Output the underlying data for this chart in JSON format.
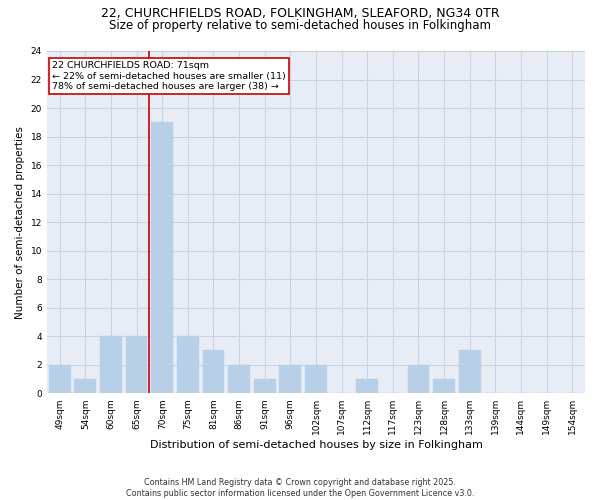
{
  "title1": "22, CHURCHFIELDS ROAD, FOLKINGHAM, SLEAFORD, NG34 0TR",
  "title2": "Size of property relative to semi-detached houses in Folkingham",
  "xlabel": "Distribution of semi-detached houses by size in Folkingham",
  "ylabel": "Number of semi-detached properties",
  "categories": [
    "49sqm",
    "54sqm",
    "60sqm",
    "65sqm",
    "70sqm",
    "75sqm",
    "81sqm",
    "86sqm",
    "91sqm",
    "96sqm",
    "102sqm",
    "107sqm",
    "112sqm",
    "117sqm",
    "123sqm",
    "128sqm",
    "133sqm",
    "139sqm",
    "144sqm",
    "149sqm",
    "154sqm"
  ],
  "values": [
    2,
    1,
    4,
    4,
    19,
    4,
    3,
    2,
    1,
    2,
    2,
    0,
    1,
    0,
    2,
    1,
    3,
    0,
    0,
    0,
    0
  ],
  "bar_color": "#b8cfe8",
  "bar_edge_color": "#b8cfe8",
  "grid_color": "#c8d4e4",
  "bg_color": "#e8edf5",
  "vline_color": "#cc0000",
  "annotation_title": "22 CHURCHFIELDS ROAD: 71sqm",
  "annotation_line1": "← 22% of semi-detached houses are smaller (11)",
  "annotation_line2": "78% of semi-detached houses are larger (38) →",
  "annotation_box_color": "#cc0000",
  "ylim": [
    0,
    24
  ],
  "yticks": [
    0,
    2,
    4,
    6,
    8,
    10,
    12,
    14,
    16,
    18,
    20,
    22,
    24
  ],
  "footer": "Contains HM Land Registry data © Crown copyright and database right 2025.\nContains public sector information licensed under the Open Government Licence v3.0.",
  "title_fontsize": 9,
  "subtitle_fontsize": 8.5,
  "tick_fontsize": 6.5,
  "ylabel_fontsize": 7.5,
  "xlabel_fontsize": 8,
  "annotation_fontsize": 6.8,
  "footer_fontsize": 5.8
}
